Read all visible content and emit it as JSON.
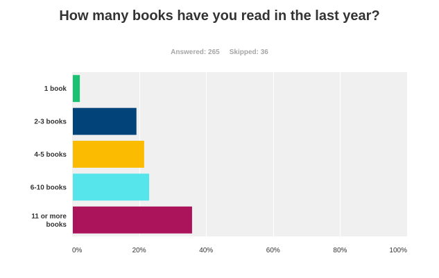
{
  "header": {
    "title": "How many books have you read in the last year?",
    "answered_label": "Answered: 265",
    "skipped_label": "Skipped: 36"
  },
  "chart_data": {
    "type": "bar",
    "orientation": "horizontal",
    "title": "How many books have you read in the last year?",
    "categories": [
      [
        "1 book"
      ],
      [
        "2-3 books"
      ],
      [
        "4-5 books"
      ],
      [
        "6-10 books"
      ],
      [
        "11 or more",
        "books"
      ]
    ],
    "values": [
      2.3,
      19.2,
      21.5,
      23.0,
      35.8
    ],
    "value_unit": "%",
    "xlim": [
      0,
      100
    ],
    "ticks": [
      "0%",
      "20%",
      "40%",
      "60%",
      "80%",
      "100%"
    ],
    "tick_values": [
      0,
      20,
      40,
      60,
      80,
      100
    ],
    "grid": true,
    "colors": [
      "#19c271",
      "#02437a",
      "#fbbb00",
      "#55e5ea",
      "#ab135b"
    ],
    "plot_background": "#f0f0f0",
    "grid_color": "#ffffff"
  }
}
